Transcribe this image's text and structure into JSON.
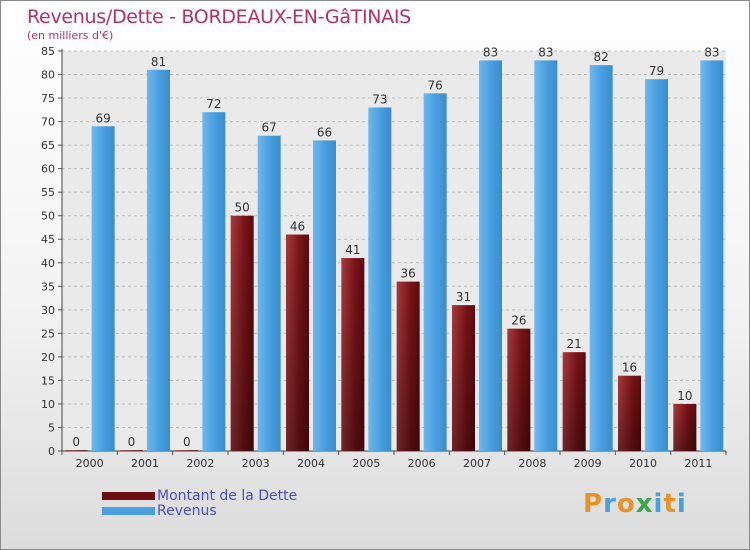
{
  "title": "Revenus/Dette - BORDEAUX-EN-GâTINAIS",
  "subtitle": "(en milliers d'€)",
  "chart_data": {
    "type": "bar",
    "categories": [
      "2000",
      "2001",
      "2002",
      "2003",
      "2004",
      "2005",
      "2006",
      "2007",
      "2008",
      "2009",
      "2010",
      "2011"
    ],
    "series": [
      {
        "name": "Montant de la Dette",
        "color": "#7a1418",
        "values": [
          0,
          0,
          0,
          50,
          46,
          41,
          36,
          31,
          26,
          21,
          16,
          10
        ]
      },
      {
        "name": "Revenus",
        "color": "#4a9fe0",
        "values": [
          69,
          81,
          72,
          67,
          66,
          73,
          76,
          83,
          83,
          82,
          79,
          83
        ]
      }
    ],
    "ylim": [
      0,
      85
    ],
    "ytick_step": 5,
    "grid": true,
    "legend": "bottom-left"
  },
  "legend": {
    "items": [
      {
        "label": "Montant de la Dette",
        "color": "#6a0e12"
      },
      {
        "label": "Revenus",
        "color": "#4a9fe0"
      }
    ]
  },
  "logo": {
    "letters": [
      "P",
      "r",
      "o",
      "x",
      "i",
      "t",
      "i"
    ],
    "colors": [
      "#e8932a",
      "#4a9fe0",
      "#e8932a",
      "#3aa84a",
      "#4a9fe0",
      "#e8932a",
      "#4a9fe0"
    ]
  }
}
